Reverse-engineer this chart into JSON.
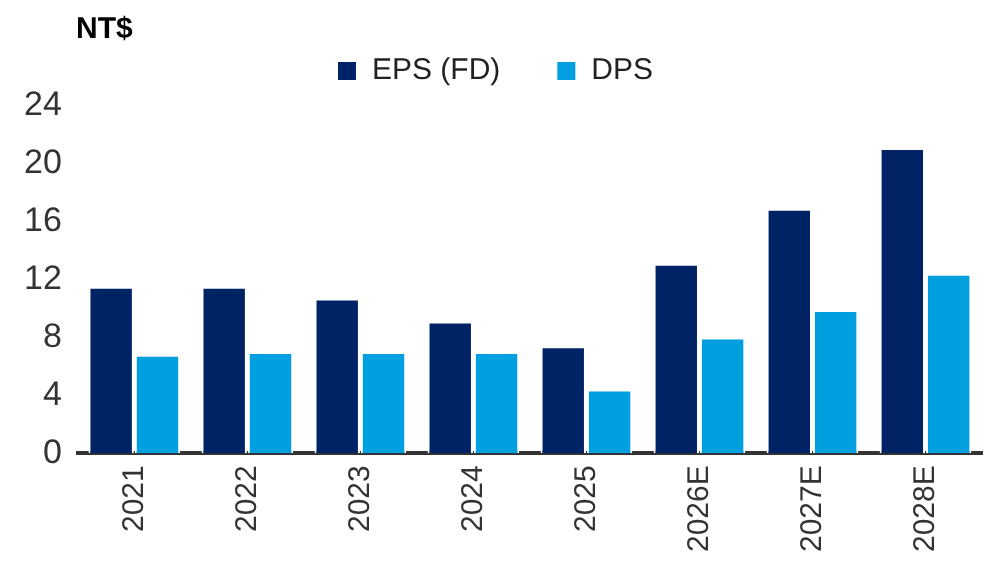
{
  "chart_data": {
    "type": "bar",
    "ylabel": "NT$",
    "categories": [
      "2021",
      "2022",
      "2023",
      "2024",
      "2025",
      "2026E",
      "2027E",
      "2028E"
    ],
    "series": [
      {
        "name": "EPS (FD)",
        "color": "#002366",
        "values": [
          11.5,
          11.5,
          10.7,
          9.1,
          7.4,
          13.1,
          16.9,
          21.1
        ]
      },
      {
        "name": "DPS",
        "color": "#009fdf",
        "values": [
          6.8,
          7.0,
          7.0,
          7.0,
          4.4,
          8.0,
          9.9,
          12.4
        ]
      }
    ],
    "ylim": [
      0,
      24
    ],
    "yticks": [
      0,
      4,
      8,
      12,
      16,
      20,
      24
    ],
    "grid": false,
    "legend": "top"
  }
}
